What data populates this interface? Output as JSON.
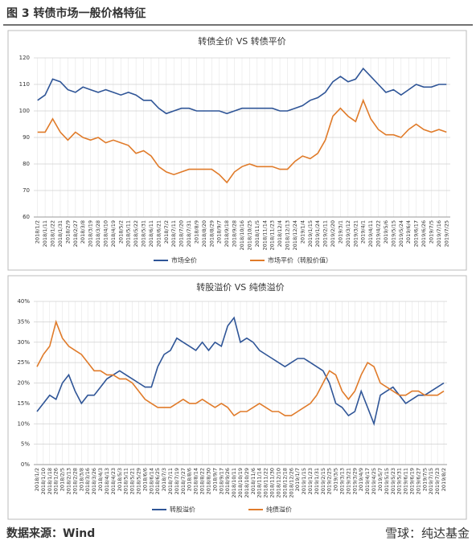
{
  "header": {
    "title": "图 3  转债市场一般价格特征"
  },
  "footer": {
    "source": "数据来源：Wind"
  },
  "watermark": "雪球：纯达基金",
  "chart_data": [
    {
      "type": "line",
      "title": "转债全价 VS 转债平价",
      "categories": [
        "2018/1/2",
        "2018/1/11",
        "2018/1/22",
        "2018/1/31",
        "2018/2/9",
        "2018/2/27",
        "2018/3/8",
        "2018/3/19",
        "2018/3/28",
        "2018/4/10",
        "2018/4/19",
        "2018/5/2",
        "2018/5/11",
        "2018/5/22",
        "2018/5/31",
        "2018/6/11",
        "2018/6/21",
        "2018/7/2",
        "2018/7/11",
        "2018/7/20",
        "2018/7/31",
        "2018/8/9",
        "2018/8/20",
        "2018/8/29",
        "2018/9/7",
        "2018/9/18",
        "2018/9/28",
        "2018/10/16",
        "2018/10/25",
        "2018/11/5",
        "2018/11/14",
        "2018/11/23",
        "2018/12/4",
        "2018/12/13",
        "2018/12/24",
        "2019/1/4",
        "2019/1/15",
        "2019/1/24",
        "2019/2/11",
        "2019/2/20",
        "2019/3/1",
        "2019/3/12",
        "2019/3/21",
        "2019/4/1",
        "2019/4/11",
        "2019/4/22",
        "2019/5/6",
        "2019/5/15",
        "2019/5/24",
        "2019/6/4",
        "2019/6/17",
        "2019/6/26",
        "2019/7/5",
        "2019/7/16",
        "2019/7/25"
      ],
      "series": [
        {
          "name": "市场全价",
          "color": "#2f5597",
          "values": [
            104,
            106,
            112,
            111,
            108,
            107,
            109,
            108,
            107,
            108,
            107,
            106,
            107,
            106,
            104,
            104,
            101,
            99,
            100,
            101,
            101,
            100,
            100,
            100,
            100,
            99,
            100,
            101,
            101,
            101,
            101,
            101,
            100,
            100,
            101,
            102,
            104,
            105,
            107,
            111,
            113,
            111,
            112,
            116,
            113,
            110,
            107,
            108,
            106,
            108,
            110,
            109,
            109,
            110,
            110
          ]
        },
        {
          "name": "市场平价（转股价值）",
          "color": "#e07b2a",
          "values": [
            92,
            92,
            97,
            92,
            89,
            92,
            90,
            89,
            90,
            88,
            89,
            88,
            87,
            84,
            85,
            83,
            79,
            77,
            76,
            77,
            78,
            78,
            78,
            78,
            76,
            73,
            77,
            79,
            80,
            79,
            79,
            79,
            78,
            78,
            81,
            83,
            82,
            84,
            89,
            98,
            101,
            98,
            96,
            104,
            97,
            93,
            91,
            91,
            90,
            93,
            95,
            93,
            92,
            93,
            92
          ]
        }
      ],
      "ylim": [
        60,
        120
      ],
      "yticks": [
        60,
        70,
        80,
        90,
        100,
        110,
        120
      ],
      "grid": true,
      "legend": "bottom"
    },
    {
      "type": "line",
      "title": "转股溢价 VS 纯债溢价",
      "categories": [
        "2018/1/2",
        "2018/1/10",
        "2018/1/18",
        "2018/1/26",
        "2018/2/5",
        "2018/2/13",
        "2018/2/28",
        "2018/3/8",
        "2018/3/16",
        "2018/3/26",
        "2018/4/3",
        "2018/4/13",
        "2018/4/23",
        "2018/5/3",
        "2018/5/11",
        "2018/5/21",
        "2018/5/29",
        "2018/6/6",
        "2018/6/14",
        "2018/6/25",
        "2018/7/3",
        "2018/7/11",
        "2018/7/19",
        "2018/7/27",
        "2018/8/6",
        "2018/8/14",
        "2018/8/22",
        "2018/8/30",
        "2018/9/7",
        "2018/9/17",
        "2018/9/26",
        "2018/10/11",
        "2018/10/19",
        "2018/10/29",
        "2018/11/6",
        "2018/11/14",
        "2018/11/22",
        "2018/11/30",
        "2018/12/10",
        "2018/12/18",
        "2018/12/26",
        "2019/1/7",
        "2019/1/15",
        "2019/1/23",
        "2019/1/31",
        "2019/2/15",
        "2019/2/25",
        "2019/3/5",
        "2019/3/13",
        "2019/3/21",
        "2019/3/29",
        "2019/4/9",
        "2019/4/17",
        "2019/4/25",
        "2019/5/7",
        "2019/5/15",
        "2019/5/23",
        "2019/5/31",
        "2019/6/11",
        "2019/6/19",
        "2019/6/27",
        "2019/7/5",
        "2019/7/15",
        "2019/7/23",
        "2019/8/2"
      ],
      "series": [
        {
          "name": "转股溢价",
          "color": "#2f5597",
          "values": [
            13,
            15,
            17,
            16,
            20,
            22,
            18,
            15,
            17,
            17,
            19,
            21,
            22,
            23,
            22,
            21,
            20,
            19,
            19,
            24,
            27,
            28,
            31,
            30,
            29,
            28,
            30,
            28,
            30,
            29,
            34,
            36,
            30,
            31,
            30,
            28,
            27,
            26,
            25,
            24,
            25,
            26,
            26,
            25,
            24,
            23,
            20,
            15,
            14,
            12,
            13,
            18,
            14,
            10,
            17,
            18,
            19,
            17,
            15,
            16,
            17,
            17,
            18,
            19,
            20
          ]
        },
        {
          "name": "纯债溢价",
          "color": "#e07b2a",
          "values": [
            24,
            27,
            29,
            35,
            31,
            29,
            28,
            27,
            25,
            23,
            23,
            22,
            22,
            21,
            21,
            20,
            18,
            16,
            15,
            14,
            14,
            14,
            15,
            16,
            15,
            15,
            16,
            15,
            14,
            15,
            14,
            12,
            13,
            13,
            14,
            15,
            14,
            13,
            13,
            12,
            12,
            13,
            14,
            15,
            17,
            20,
            23,
            22,
            18,
            16,
            18,
            22,
            25,
            24,
            20,
            19,
            18,
            17,
            17,
            18,
            18,
            17,
            17,
            17,
            18
          ]
        }
      ],
      "ylim": [
        0,
        40
      ],
      "yticks": [
        {
          "value": 0,
          "label": "0%"
        },
        {
          "value": 5,
          "label": "5%"
        },
        {
          "value": 10,
          "label": "10%"
        },
        {
          "value": 15,
          "label": "15%"
        },
        {
          "value": 20,
          "label": "20%"
        },
        {
          "value": 25,
          "label": "25%"
        },
        {
          "value": 30,
          "label": "30%"
        },
        {
          "value": 35,
          "label": "35%"
        },
        {
          "value": 40,
          "label": "40%"
        }
      ],
      "grid": true,
      "legend": "bottom"
    }
  ]
}
